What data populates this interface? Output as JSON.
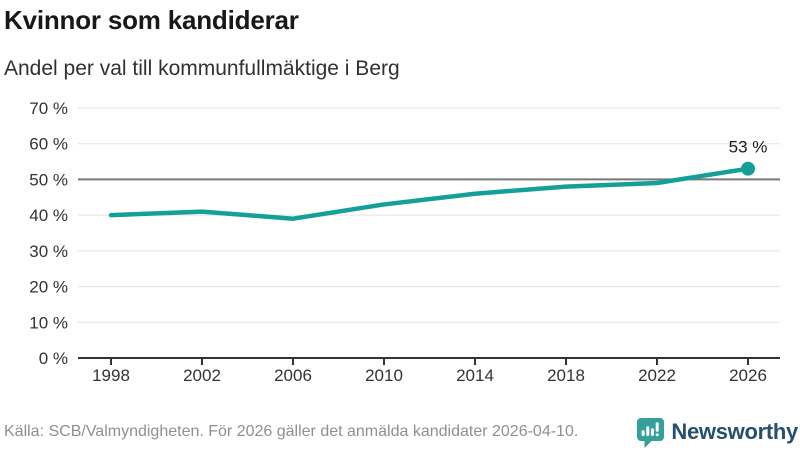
{
  "header": {
    "title": "Kvinnor som kandiderar",
    "subtitle": "Andel per val till kommunfullmäktige i Berg"
  },
  "chart_data": {
    "type": "line",
    "title": "Kvinnor som kandiderar",
    "subtitle": "Andel per val till kommunfullmäktige i Berg",
    "categories": [
      "1998",
      "2002",
      "2006",
      "2010",
      "2014",
      "2018",
      "2022",
      "2026"
    ],
    "values": [
      40,
      41,
      39,
      43,
      46,
      48,
      49,
      53
    ],
    "unit": "%",
    "ylim": [
      0,
      70
    ],
    "yticks": [
      "0 %",
      "10 %",
      "20 %",
      "30 %",
      "40 %",
      "50 %",
      "60 %",
      "70 %"
    ],
    "grid": true,
    "legend": "none",
    "reference_line_value": 50,
    "end_point_label": "53 %",
    "line_color": "#14a098",
    "reference_line_color": "#787878",
    "grid_color": "#e3e3e3",
    "axis_color": "#333333"
  },
  "footer": {
    "source": "Källa: SCB/Valmyndigheten. För 2026 gäller det anmälda kandidater 2026-04-10.",
    "brand": "Newsworthy",
    "brand_icon": "newsworthy-chart-bubble-icon",
    "brand_icon_color": "#35a09a",
    "brand_text_color": "#26506e"
  }
}
